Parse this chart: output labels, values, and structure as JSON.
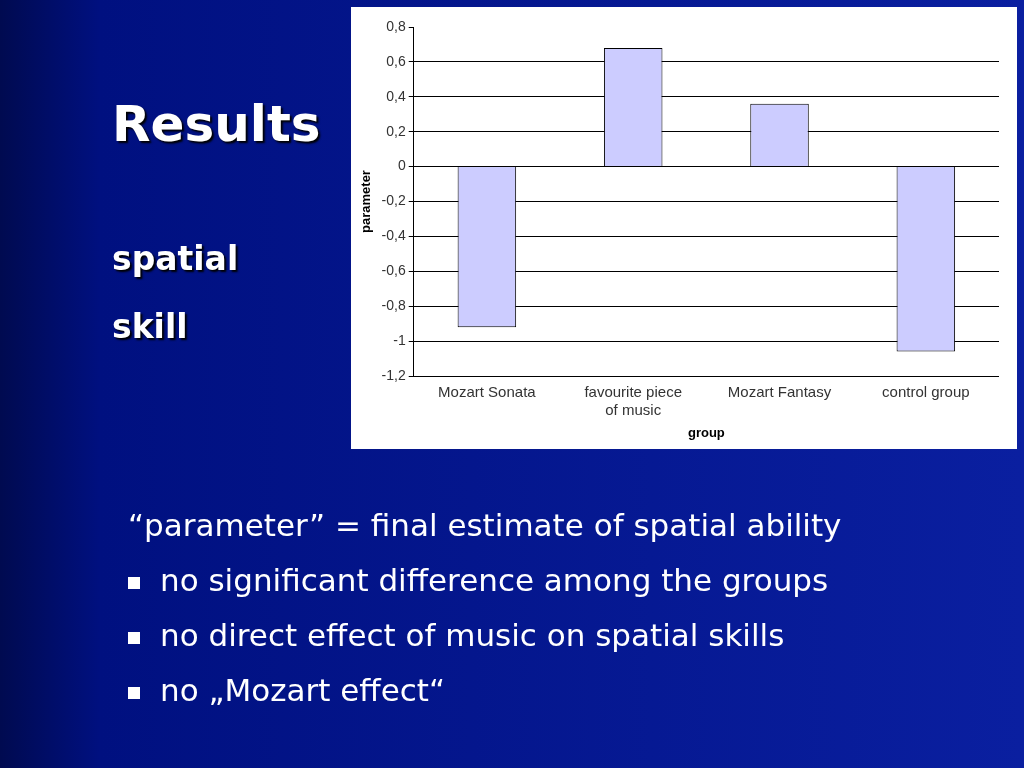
{
  "chart_data": {
    "type": "bar",
    "title": "Results",
    "subtitle": "spatial skill",
    "xlabel": "group",
    "ylabel": "parameter",
    "categories": [
      "Mozart Sonata",
      "favourite piece of music",
      "Mozart Fantasy",
      "control group"
    ],
    "values": [
      -0.92,
      0.68,
      0.36,
      -1.06
    ],
    "color": "#ccccff",
    "ylim": [
      -1.2,
      0.8
    ],
    "yticks": [
      {
        "value": 0.8,
        "label": "0,8"
      },
      {
        "value": 0.6,
        "label": "0,6"
      },
      {
        "value": 0.4,
        "label": "0,4"
      },
      {
        "value": 0.2,
        "label": "0,2"
      },
      {
        "value": 0,
        "label": "0"
      },
      {
        "value": -0.2,
        "label": "-0,2"
      },
      {
        "value": -0.4,
        "label": "-0,4"
      },
      {
        "value": -0.6,
        "label": "-0,6"
      },
      {
        "value": -0.8,
        "label": "-0,8"
      },
      {
        "value": -1,
        "label": "-1"
      },
      {
        "value": -1.2,
        "label": "-1,2"
      }
    ],
    "grid": "y",
    "legend": false,
    "annotations": [
      "“parameter” = final estimate of spatial ability",
      "no significant difference among the groups",
      "no direct effect of music on spatial skills",
      "no „Mozart effect“"
    ]
  }
}
